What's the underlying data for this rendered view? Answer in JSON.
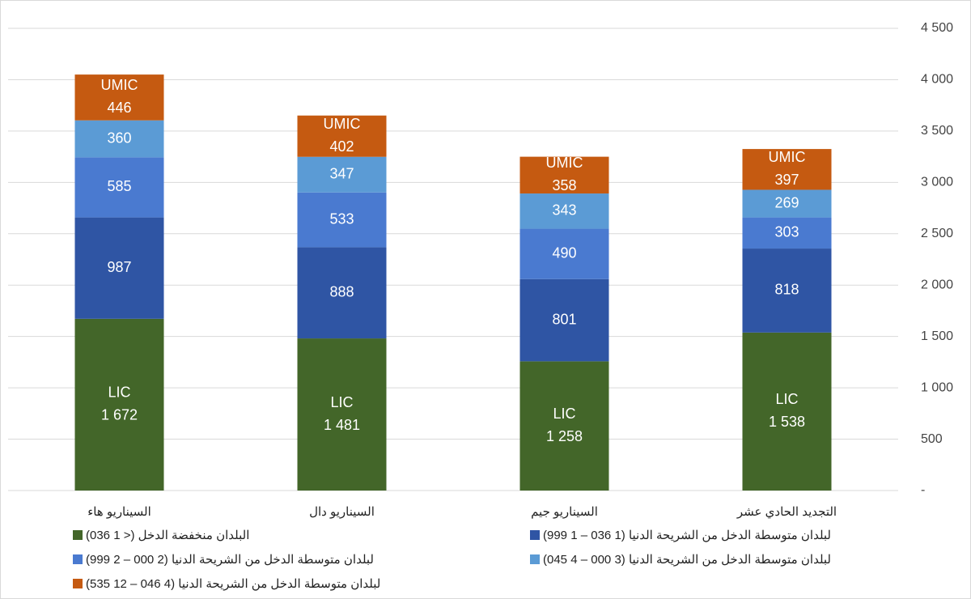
{
  "chart_data": {
    "type": "bar",
    "stacked": true,
    "categories": [
      "السيناريو هاء",
      "السيناريو دال",
      "السيناريو جيم",
      "التجديد الحادي عشر"
    ],
    "series": [
      {
        "name": "البلدان منخفضة الدخل (< 1 036)",
        "short_name": "LIC",
        "color": "#436629",
        "values": [
          1672,
          1481,
          1258,
          1538
        ],
        "value_labels": [
          "1 672",
          "1 481",
          "1 258",
          "1 538"
        ]
      },
      {
        "name": "لبلدان متوسطة الدخل من الشريحة الدنيا (1 036 – 1 999)",
        "color": "#2f55a4",
        "values": [
          987,
          888,
          801,
          818
        ]
      },
      {
        "name": "لبلدان متوسطة الدخل من الشريحة الدنيا (2 000 – 2 999)",
        "color": "#4a7ad0",
        "values": [
          585,
          533,
          490,
          303
        ]
      },
      {
        "name": "لبلدان متوسطة الدخل من الشريحة الدنيا (3 000 – 4 045)",
        "color": "#5b9bd5",
        "values": [
          360,
          347,
          343,
          269
        ]
      },
      {
        "name": "لبلدان متوسطة الدخل من الشريحة الدنيا (4 046 – 12 535)",
        "short_name": "UMIC",
        "color": "#c55a11",
        "values": [
          446,
          402,
          358,
          397
        ]
      }
    ],
    "ylim": [
      0,
      4500
    ],
    "yticks": [
      {
        "value": 0,
        "label": "-"
      },
      500,
      {
        "value": 1000,
        "label": "1 000"
      },
      {
        "value": 1500,
        "label": "1 500"
      },
      {
        "value": 2000,
        "label": "2 000"
      },
      {
        "value": 2500,
        "label": "2 500"
      },
      {
        "value": 3000,
        "label": "3 000"
      },
      {
        "value": 3500,
        "label": "3 500"
      },
      {
        "value": 4000,
        "label": "4 000"
      },
      {
        "value": 4500,
        "label": "4 500"
      }
    ],
    "grid": true,
    "y_axis_side": "right",
    "legend": "bottom"
  }
}
